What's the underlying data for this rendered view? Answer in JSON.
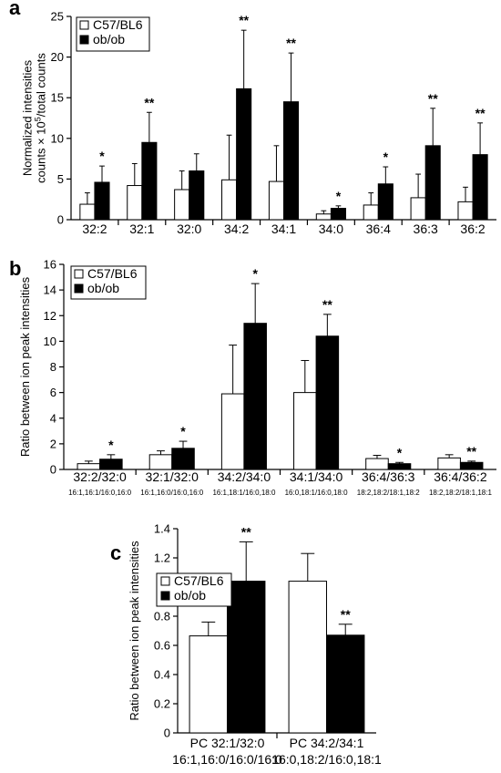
{
  "chart_data": [
    {
      "panel": "a",
      "type": "bar",
      "ylabel": [
        "Normalized intensities",
        "counts × 10^5/total counts"
      ],
      "ylim": [
        0,
        25
      ],
      "yticks": [
        0,
        5,
        10,
        15,
        20,
        25
      ],
      "categories": [
        "32:2",
        "32:1",
        "32:0",
        "34:2",
        "34:1",
        "34:0",
        "36:4",
        "36:3",
        "36:2"
      ],
      "series": [
        {
          "name": "C57/BL6",
          "color": "#ffffff",
          "values": [
            1.9,
            4.2,
            3.7,
            4.9,
            4.7,
            0.7,
            1.8,
            2.7,
            2.2
          ],
          "errors": [
            1.4,
            2.7,
            2.3,
            5.5,
            4.4,
            0.4,
            1.5,
            2.9,
            1.8
          ]
        },
        {
          "name": "ob/ob",
          "color": "#000000",
          "values": [
            4.6,
            9.5,
            6.0,
            16.1,
            14.5,
            1.4,
            4.4,
            9.1,
            8.0
          ],
          "errors": [
            2.0,
            3.7,
            2.1,
            7.2,
            6.0,
            0.3,
            2.1,
            4.6,
            3.9
          ]
        }
      ],
      "significance": [
        "*",
        "**",
        "",
        "**",
        "**",
        "*",
        "*",
        "**",
        "**"
      ],
      "legend_position": "top-left"
    },
    {
      "panel": "b",
      "type": "bar",
      "ylabel": [
        "Ratio between ion peak intensities"
      ],
      "ylim": [
        0,
        16
      ],
      "yticks": [
        0,
        2,
        4,
        6,
        8,
        10,
        12,
        14,
        16
      ],
      "categories": [
        "32:2/32:0",
        "32:1/32:0",
        "34:2/34:0",
        "34:1/34:0",
        "36:4/36:3",
        "36:4/36:2"
      ],
      "sublabels": [
        "16:1,16:1/16:0,16:0",
        "16:1,16:0/16:0,16:0",
        "16:1,18:1/16:0,18:0",
        "16:0,18:1/16:0,18:0",
        "18:2,18:2/18:1,18:2",
        "18:2,18:2/18:1,18:1"
      ],
      "series": [
        {
          "name": "C57/BL6",
          "color": "#ffffff",
          "values": [
            0.45,
            1.15,
            5.9,
            6.0,
            0.85,
            0.9
          ],
          "errors": [
            0.2,
            0.3,
            3.8,
            2.5,
            0.25,
            0.25
          ]
        },
        {
          "name": "ob/ob",
          "color": "#000000",
          "values": [
            0.8,
            1.65,
            11.4,
            10.4,
            0.45,
            0.55
          ],
          "errors": [
            0.35,
            0.55,
            3.1,
            1.7,
            0.1,
            0.1
          ]
        }
      ],
      "significance": [
        "*",
        "*",
        "*",
        "**",
        "*",
        "**"
      ],
      "legend_position": "top-left"
    },
    {
      "panel": "c",
      "type": "bar",
      "ylabel": [
        "Ratio between ion peak intensities"
      ],
      "ylim": [
        0,
        1.4
      ],
      "yticks": [
        0,
        0.2,
        0.4,
        0.6,
        0.8,
        1,
        1.2,
        1.4
      ],
      "categories": [
        "PC 32:1/32:0",
        "PC 34:2/34:1"
      ],
      "sublabels": [
        "16:1,16:0/16:0/16:0",
        "16:0,18:2/16:0,18:1"
      ],
      "series": [
        {
          "name": "C57/BL6",
          "color": "#ffffff",
          "values": [
            0.665,
            1.04
          ],
          "errors": [
            0.095,
            0.19
          ]
        },
        {
          "name": "ob/ob",
          "color": "#000000",
          "values": [
            1.04,
            0.67
          ],
          "errors": [
            0.27,
            0.075
          ]
        }
      ],
      "significance": [
        "**",
        "**"
      ],
      "legend_position": "top-left"
    }
  ]
}
